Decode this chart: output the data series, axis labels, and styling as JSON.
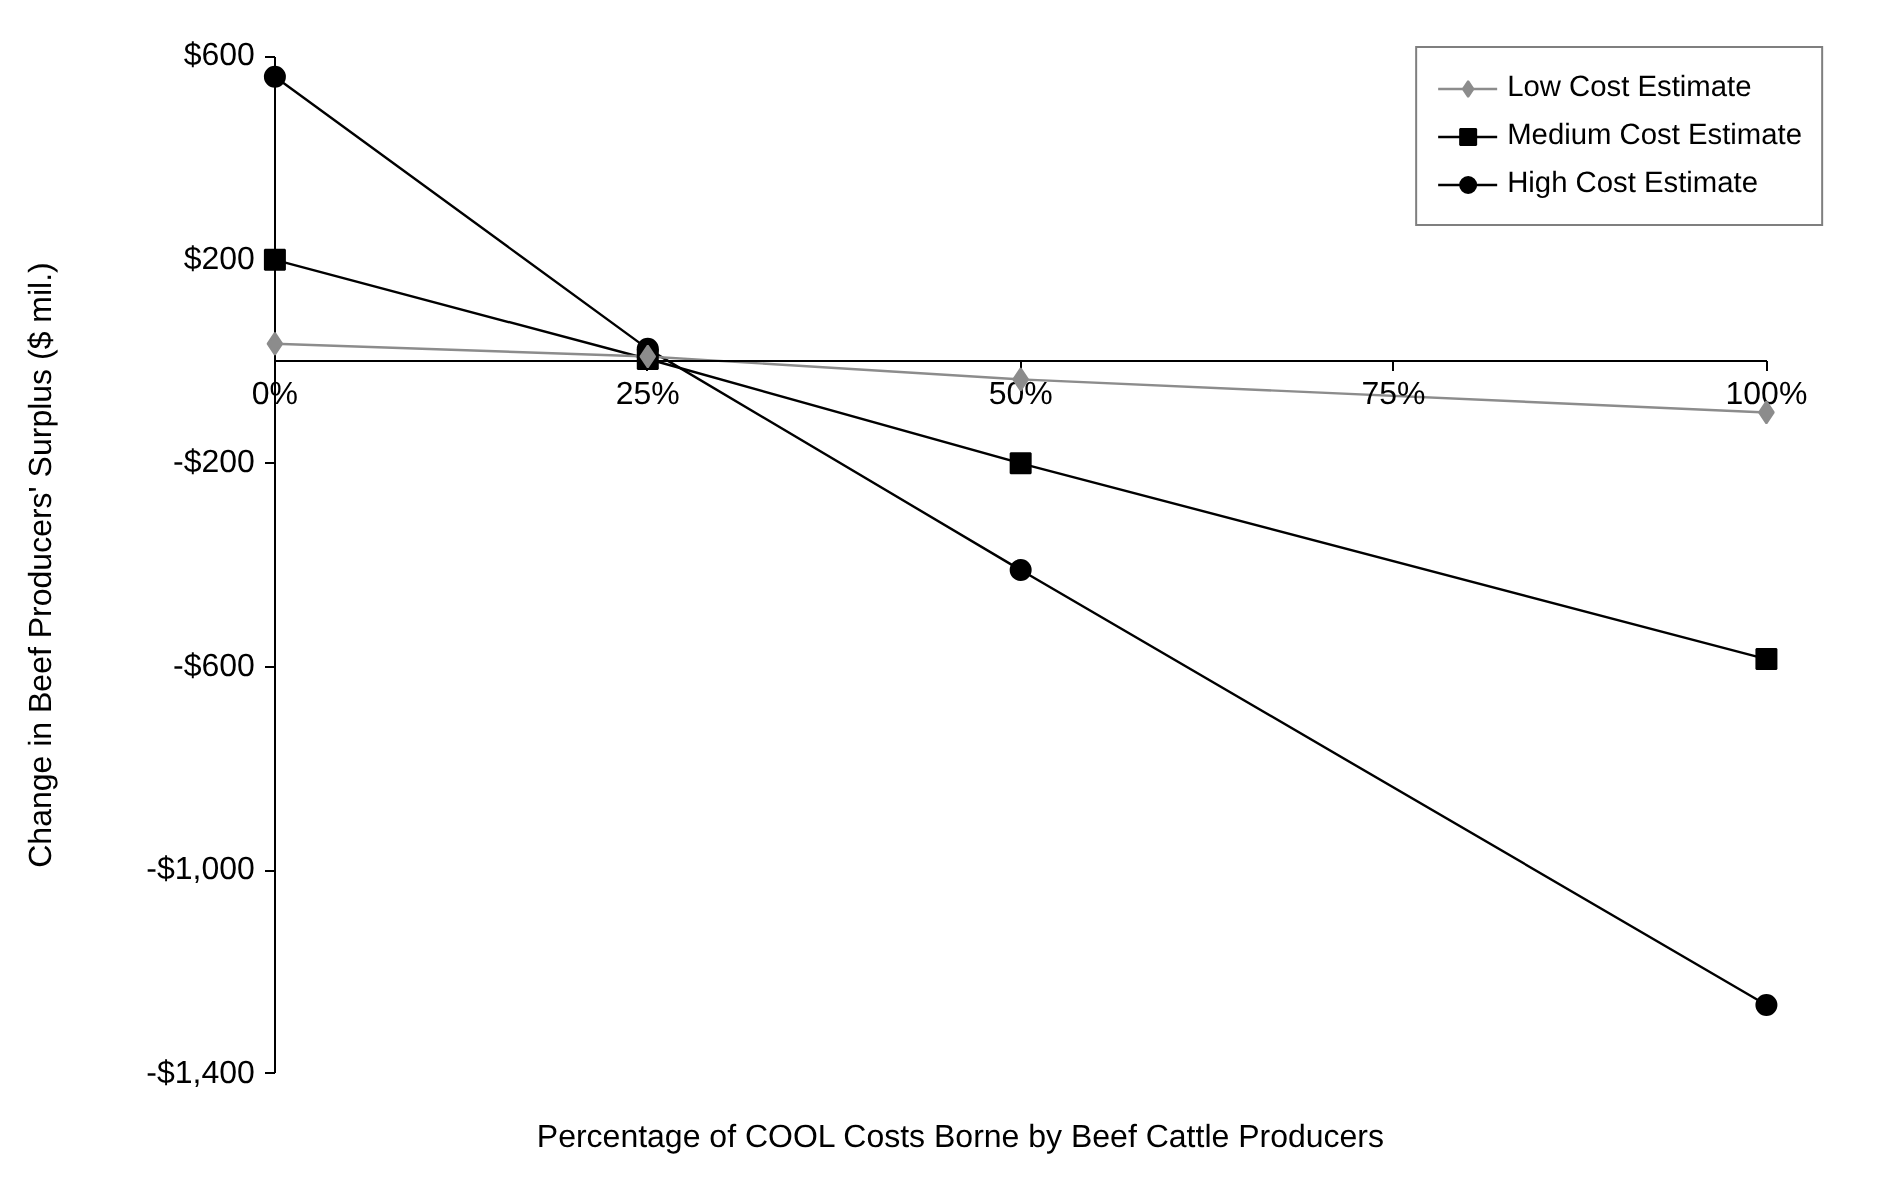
{
  "chart_data": {
    "type": "line",
    "xlabel": "Percentage of COOL Costs Borne by Beef Cattle Producers",
    "ylabel": "Change in Beef Producers' Surplus ($ mil.)",
    "x": [
      0,
      25,
      50,
      100
    ],
    "series": [
      {
        "name": "Low Cost Estimate",
        "color": "#8c8c8c",
        "marker": "diamond",
        "values": [
          35,
          10,
          -35,
          -100
        ]
      },
      {
        "name": "Medium Cost Estimate",
        "color": "#000000",
        "marker": "square",
        "values": [
          200,
          5,
          -200,
          -585
        ]
      },
      {
        "name": "High Cost Estimate",
        "color": "#000000",
        "marker": "circle",
        "values": [
          560,
          25,
          -410,
          -1265
        ]
      }
    ],
    "xlim": [
      0,
      100
    ],
    "xticks": [
      {
        "value": 0,
        "label": "0%"
      },
      {
        "value": 25,
        "label": "25%"
      },
      {
        "value": 50,
        "label": "50%"
      },
      {
        "value": 75,
        "label": "75%"
      },
      {
        "value": 100,
        "label": "100%"
      }
    ],
    "ylim": [
      -1400,
      600
    ],
    "yticks": [
      {
        "value": 600,
        "label": "$600"
      },
      {
        "value": 200,
        "label": "$200"
      },
      {
        "value": -200,
        "label": "-$200"
      },
      {
        "value": -600,
        "label": "-$600"
      },
      {
        "value": -1000,
        "label": "-$1,000"
      },
      {
        "value": -1400,
        "label": "-$1,400"
      }
    ],
    "grid": false,
    "legend": "top right",
    "line_style": "solid"
  }
}
